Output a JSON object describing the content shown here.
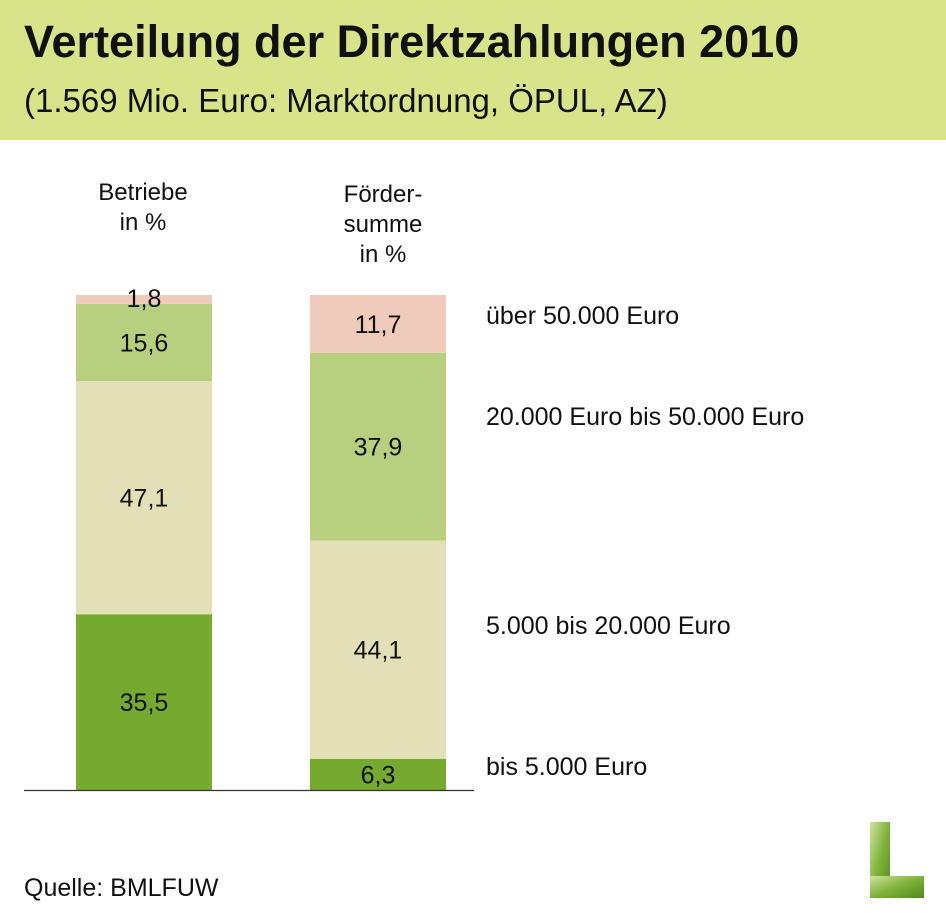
{
  "header": {
    "title": "Verteilung der Direktzahlungen 2010",
    "subtitle": "(1.569 Mio. Euro: Marktordnung, ÖPUL, AZ)"
  },
  "source": "Quelle: BMLFUW",
  "colors": {
    "header_bg": "#d9e48a",
    "bis_5000": "#76a92f",
    "5000_20000": "#e3dfb6",
    "20000_50000": "#b9cf80",
    "ueber_50000": "#efcbbc"
  },
  "chart_data": {
    "type": "bar",
    "stacked": true,
    "title": "Verteilung der Direktzahlungen 2010",
    "subtitle": "(1.569 Mio. Euro: Marktordnung, ÖPUL, AZ)",
    "categories": [
      "Betriebe\nin %",
      "Förder-\nsumme\nin %"
    ],
    "series": [
      {
        "name": "bis 5.000 Euro",
        "values": [
          35.5,
          6.3
        ],
        "labels": [
          "35,5",
          "6,3"
        ],
        "color": "#76a92f"
      },
      {
        "name": "5.000 bis 20.000 Euro",
        "values": [
          47.1,
          44.1
        ],
        "labels": [
          "47,1",
          "44,1"
        ],
        "color": "#e3dfb6"
      },
      {
        "name": "20.000 Euro bis 50.000 Euro",
        "values": [
          15.6,
          37.9
        ],
        "labels": [
          "15,6",
          "37,9"
        ],
        "color": "#b9cf80"
      },
      {
        "name": "über 50.000 Euro",
        "values": [
          1.8,
          11.7
        ],
        "labels": [
          "1,8",
          "11,7"
        ],
        "color": "#efcbbc"
      }
    ],
    "ylim": [
      0,
      100
    ],
    "legend_position": "right"
  }
}
